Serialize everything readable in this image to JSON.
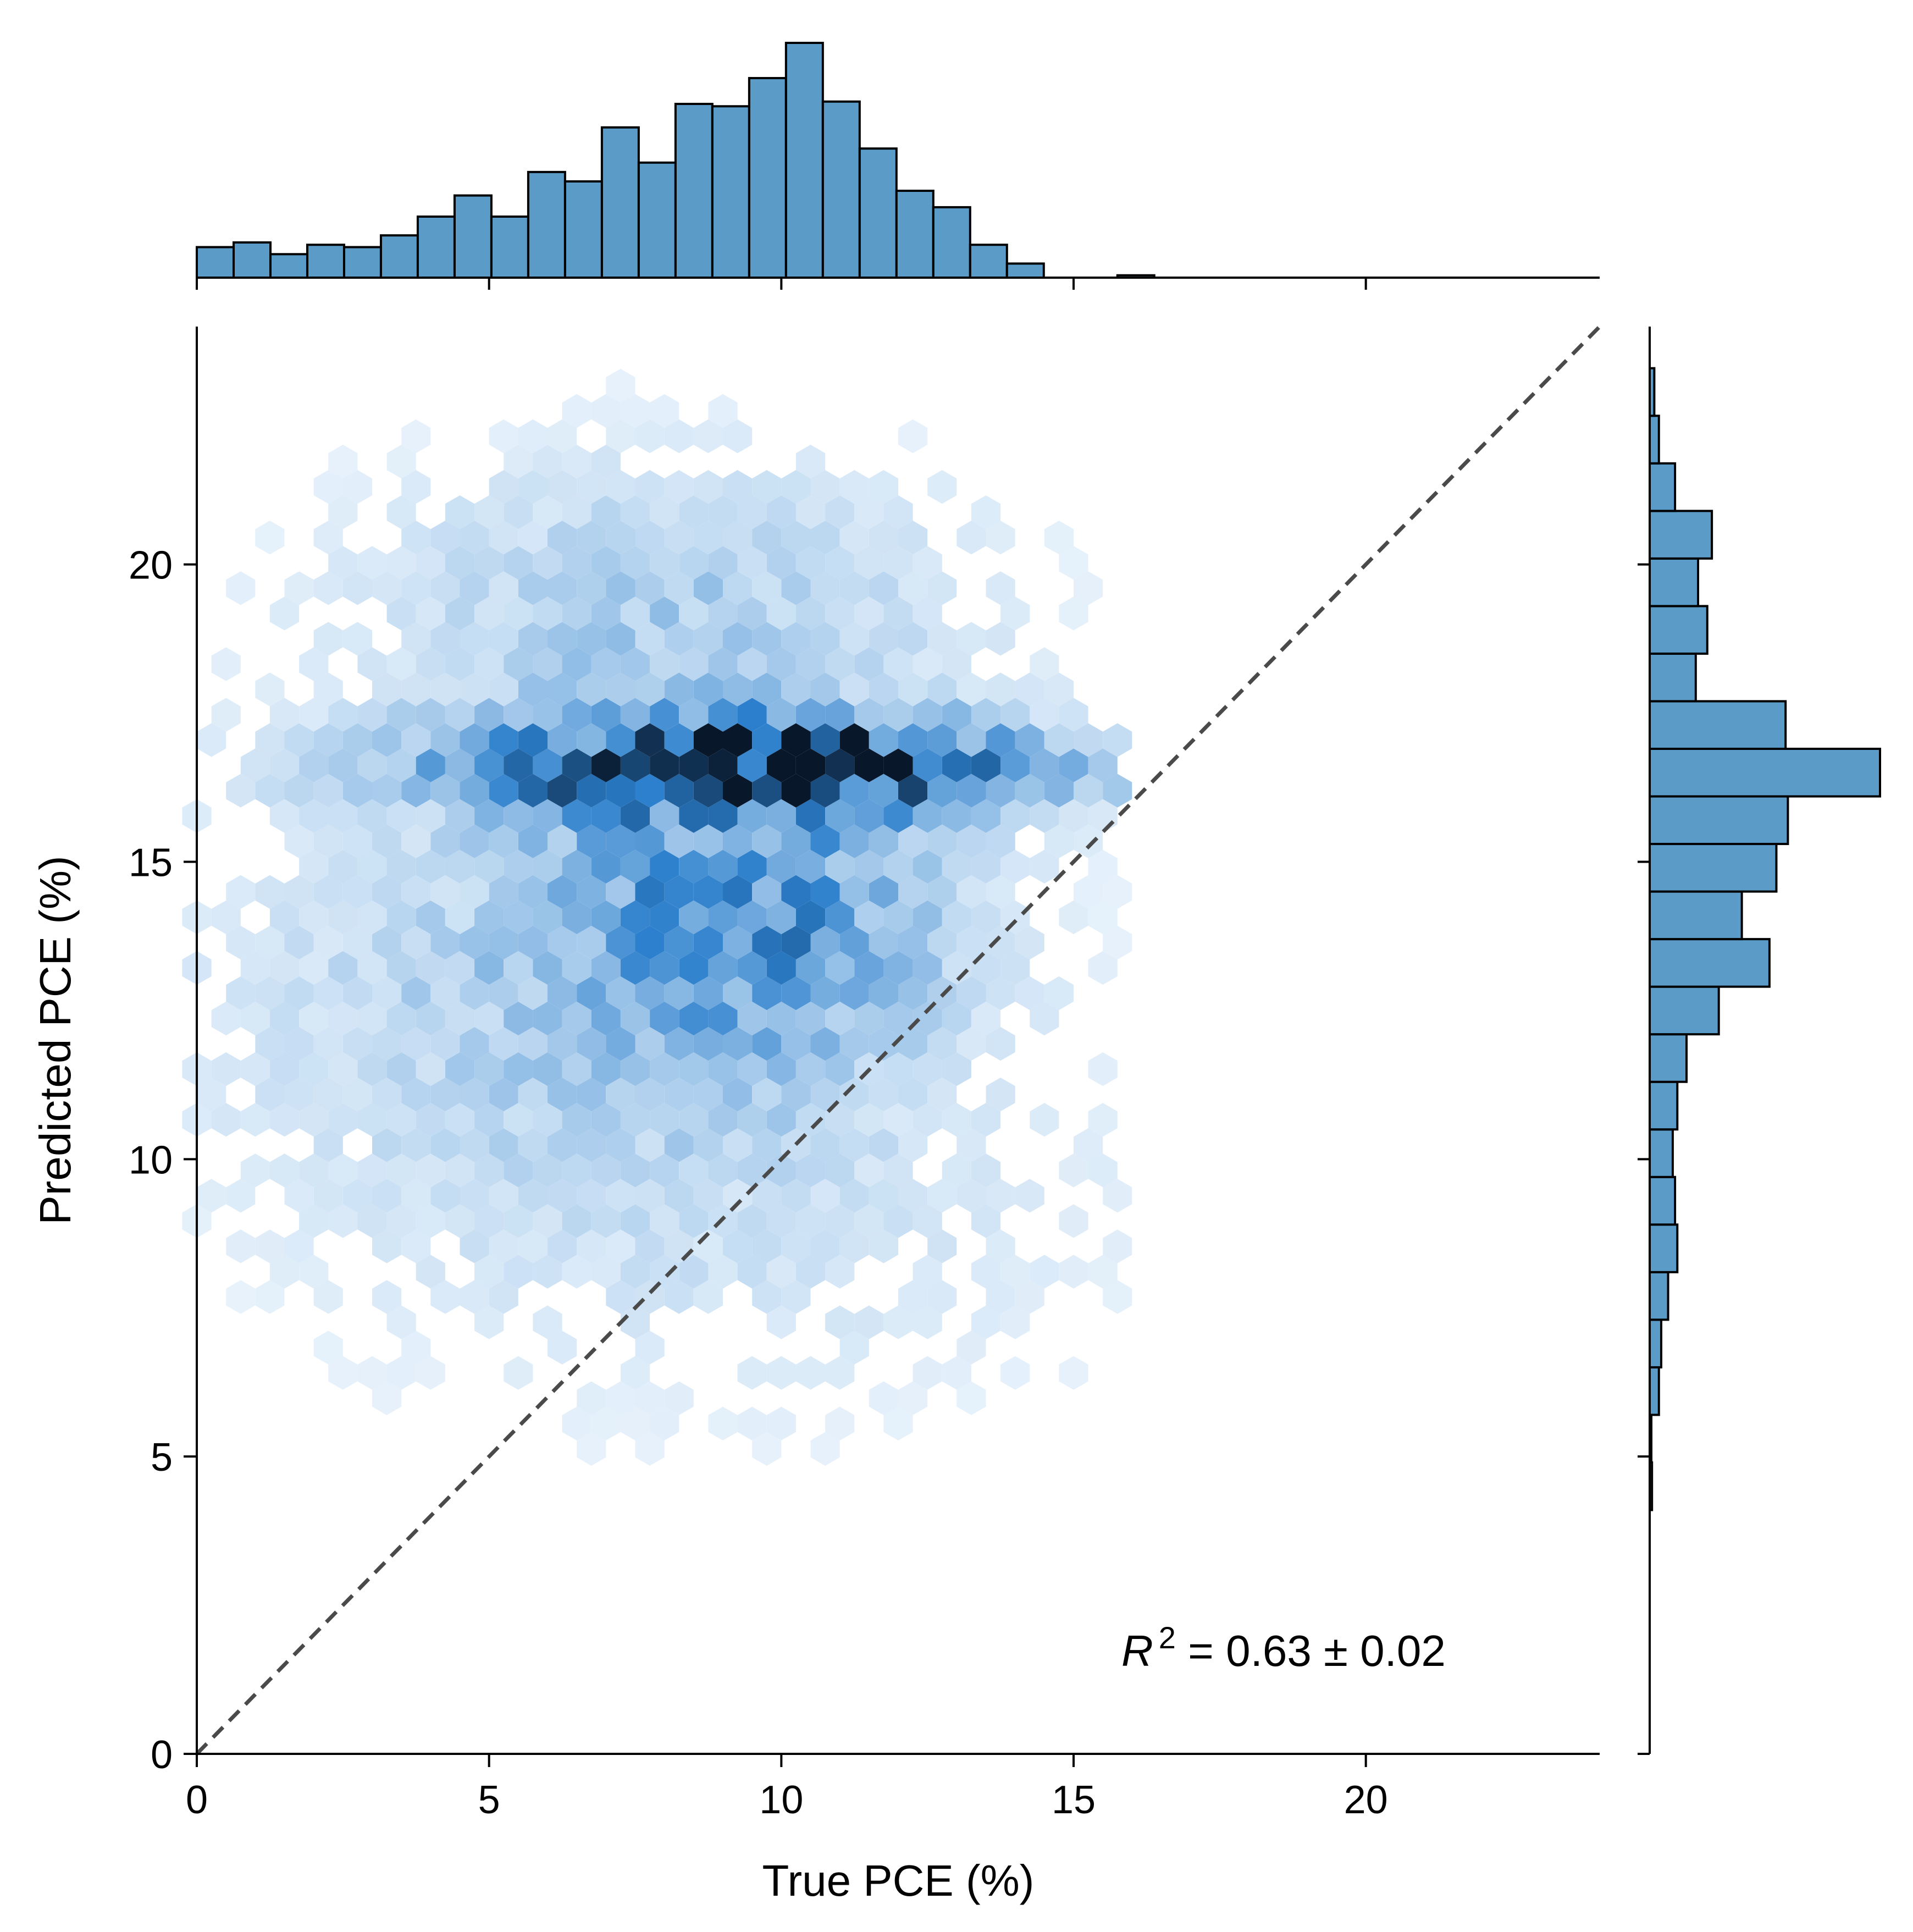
{
  "chart_data": {
    "type": "hexbin-jointplot",
    "title": "",
    "xlabel": "True PCE (%)",
    "ylabel": "Predicted PCE (%)",
    "xlim": [
      0,
      24
    ],
    "ylim": [
      0,
      24
    ],
    "xticks": [
      0,
      5,
      10,
      15,
      20
    ],
    "yticks": [
      0,
      5,
      10,
      15,
      20
    ],
    "xtick_labels": [
      "0",
      "5",
      "10",
      "15",
      "20"
    ],
    "ytick_labels": [
      "0",
      "5",
      "10",
      "15",
      "20"
    ],
    "grid": false,
    "annotation": {
      "r_symbol": "R",
      "superscript": "2",
      "rest": " = 0.63 ± 0.02"
    },
    "diagonal_line": {
      "from": [
        0,
        0
      ],
      "to": [
        24,
        24
      ],
      "style": "dashed",
      "color": "#4a4a4a"
    },
    "colors": {
      "hist_fill": "#5a9bc8",
      "hist_edge": "#000000",
      "hex_dark": "#08172a",
      "hex_mid": "#2b7fcc",
      "hex_light": "#eef6fd"
    },
    "marginal_x": {
      "type": "histogram",
      "bin_edges": [
        0,
        0.63,
        1.26,
        1.89,
        2.52,
        3.15,
        3.78,
        4.41,
        5.04,
        5.67,
        6.3,
        6.93,
        7.56,
        8.19,
        8.82,
        9.45,
        10.08,
        10.71,
        11.34,
        11.97,
        12.6,
        13.23,
        13.86,
        14.49,
        15.12,
        15.75,
        16.38
      ],
      "counts": [
        13,
        15,
        10,
        14,
        13,
        18,
        26,
        35,
        26,
        45,
        41,
        64,
        49,
        74,
        73,
        85,
        100,
        75,
        55,
        37,
        30,
        14,
        6,
        0,
        0,
        1
      ]
    },
    "marginal_y": {
      "type": "histogram",
      "bin_edges": [
        4.1,
        4.9,
        5.7,
        6.5,
        7.3,
        8.1,
        8.9,
        9.7,
        10.5,
        11.3,
        12.1,
        12.9,
        13.7,
        14.5,
        15.3,
        16.1,
        16.9,
        17.7,
        18.5,
        19.3,
        20.1,
        20.9,
        21.7,
        22.5,
        23.3
      ],
      "counts": [
        1,
        0,
        4,
        5,
        8,
        12,
        11,
        10,
        12,
        16,
        30,
        52,
        40,
        55,
        60,
        100,
        59,
        20,
        25,
        21,
        27,
        11,
        4,
        2
      ]
    },
    "hexbin": {
      "gridsize_x": 48,
      "description_free": true,
      "clusters": [
        {
          "cx": 9.8,
          "cy": 16.6,
          "sx": 3.8,
          "sy": 0.55,
          "w": 1.0
        },
        {
          "cx": 9.5,
          "cy": 14.2,
          "sx": 2.2,
          "sy": 1.6,
          "w": 0.55
        },
        {
          "cx": 8.0,
          "cy": 19.0,
          "sx": 3.5,
          "sy": 1.8,
          "w": 0.28
        },
        {
          "cx": 6.0,
          "cy": 13.0,
          "sx": 4.0,
          "sy": 2.5,
          "w": 0.22
        },
        {
          "cx": 9.0,
          "cy": 9.5,
          "sx": 4.5,
          "sy": 2.5,
          "w": 0.12
        }
      ],
      "peak": [
        10.5,
        16.8
      ],
      "x_range": [
        0,
        16
      ],
      "y_range": [
        3,
        23.5
      ]
    }
  }
}
